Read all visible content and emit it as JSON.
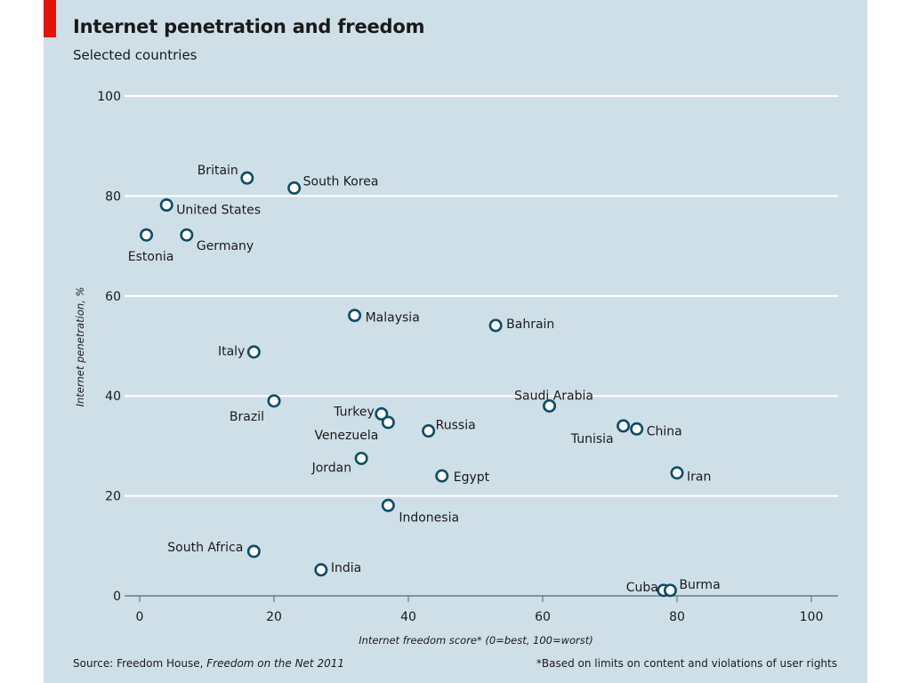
{
  "chart_data": {
    "type": "scatter",
    "title": "Internet penetration and freedom",
    "subtitle": "Selected countries",
    "xlabel": "Internet freedom score* (0=best, 100=worst)",
    "ylabel": "Internet penetration, %",
    "xlim": [
      0,
      100
    ],
    "ylim": [
      0,
      100
    ],
    "xticks": [
      0,
      20,
      40,
      60,
      80,
      100
    ],
    "yticks": [
      0,
      20,
      40,
      60,
      80,
      100
    ],
    "grid": "horizontal",
    "points": [
      {
        "label": "Britain",
        "x": 16,
        "y": 83.6
      },
      {
        "label": "South Korea",
        "x": 23,
        "y": 81.6
      },
      {
        "label": "United States",
        "x": 4,
        "y": 78.2
      },
      {
        "label": "Estonia",
        "x": 1,
        "y": 72.2
      },
      {
        "label": "Germany",
        "x": 7,
        "y": 72.2
      },
      {
        "label": "Malaysia",
        "x": 32,
        "y": 56.1
      },
      {
        "label": "Bahrain",
        "x": 53,
        "y": 54.1
      },
      {
        "label": "Italy",
        "x": 17,
        "y": 48.8
      },
      {
        "label": "Saudi Arabia",
        "x": 61,
        "y": 38.0
      },
      {
        "label": "Brazil",
        "x": 20,
        "y": 39.0
      },
      {
        "label": "Turkey",
        "x": 36,
        "y": 36.4
      },
      {
        "label": "Venezuela",
        "x": 37,
        "y": 34.7
      },
      {
        "label": "Russia",
        "x": 43,
        "y": 33.0
      },
      {
        "label": "Tunisia",
        "x": 72,
        "y": 34.0
      },
      {
        "label": "China",
        "x": 74,
        "y": 33.4
      },
      {
        "label": "Jordan",
        "x": 33,
        "y": 27.5
      },
      {
        "label": "Egypt",
        "x": 45,
        "y": 24.0
      },
      {
        "label": "Iran",
        "x": 80,
        "y": 24.6
      },
      {
        "label": "Indonesia",
        "x": 37,
        "y": 18.1
      },
      {
        "label": "South Africa",
        "x": 17,
        "y": 8.9
      },
      {
        "label": "India",
        "x": 27,
        "y": 5.2
      },
      {
        "label": "Cuba",
        "x": 78,
        "y": 1.1
      },
      {
        "label": "Burma",
        "x": 79,
        "y": 1.1
      }
    ]
  },
  "footer": {
    "source_prefix": "Source: Freedom House, ",
    "source_title": "Freedom on the Net 2011",
    "footnote": "*Based on limits on content and violations of user rights"
  },
  "colors": {
    "background": "#cfdfe8",
    "marker_stroke": "#0f4c66",
    "marker_fill": "#ffffff",
    "gridline": "#ffffff",
    "accent": "#e3120b"
  }
}
